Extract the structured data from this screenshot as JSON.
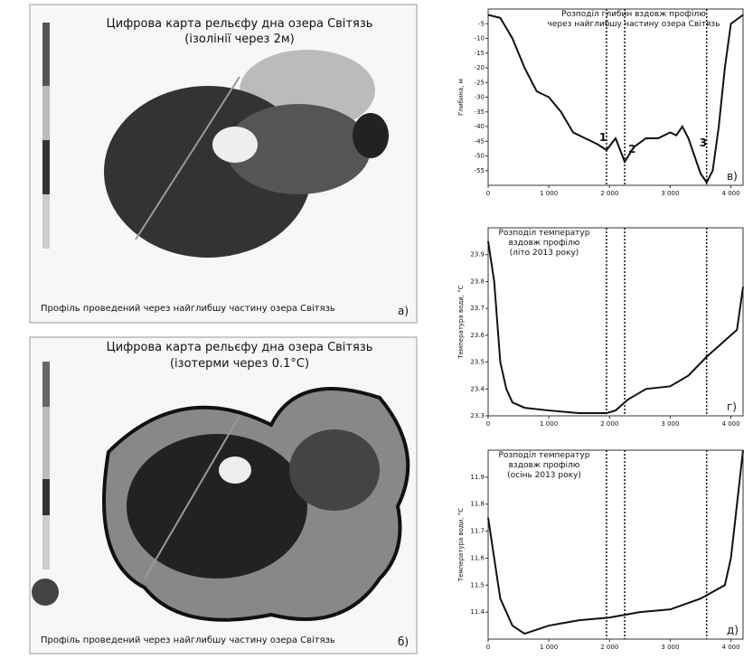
{
  "maps": [
    {
      "title": "Цифрова карта рельєфу дна озера Світязь",
      "subtitle": "(ізолінії через 2м)",
      "caption": "Профіль проведений через найглибшу частину озера Світязь",
      "panel_label": "а)"
    },
    {
      "title": "Цифрова карта рельєфу дна озера Світязь",
      "subtitle": "(ізотерми через 0.1°С)",
      "caption": "Профіль проведений через найглибшу частину озера Світязь",
      "panel_label": "б)"
    }
  ],
  "chart_data": [
    {
      "type": "line",
      "title_lines": [
        "Розподіл глибин вздовж профілю",
        "через найглибшу частину озера Світязь"
      ],
      "ylabel": "Глибина, м",
      "panel_label": "в)",
      "x": [
        0,
        200,
        400,
        600,
        800,
        1000,
        1200,
        1400,
        1600,
        1800,
        1950,
        2100,
        2250,
        2400,
        2600,
        2800,
        3000,
        3100,
        3200,
        3300,
        3400,
        3500,
        3600,
        3700,
        3800,
        3900,
        4000,
        4200
      ],
      "series": [
        {
          "color": "#111111",
          "values": [
            -2,
            -3,
            -10,
            -20,
            -28,
            -30,
            -35,
            -42,
            -44,
            -46,
            -48,
            -44,
            -52,
            -47,
            -44,
            -44,
            -42,
            -43,
            -40,
            -44,
            -50,
            -56,
            -59,
            -55,
            -40,
            -20,
            -5,
            -2
          ]
        }
      ],
      "xlim": [
        0,
        4200
      ],
      "xticks": [
        0,
        {
          "value": 1000,
          "label": "1 000"
        },
        {
          "value": 2000,
          "label": "2 000"
        },
        {
          "value": 3000,
          "label": "3 000"
        },
        {
          "value": 4000,
          "label": "4 000"
        }
      ],
      "ylim": [
        -60,
        0
      ],
      "yticks": [
        -55,
        -50,
        -45,
        -40,
        -35,
        -30,
        -25,
        -20,
        -15,
        -10,
        -5
      ],
      "markers": {
        "x": [
          1950,
          2250,
          3600
        ],
        "labels": [
          "1",
          "2",
          "3"
        ]
      }
    },
    {
      "type": "line",
      "title_lines": [
        "Розподіл температур",
        "вздовж профілю",
        "(літо 2013 року)"
      ],
      "ylabel": "Температура води, °С",
      "panel_label": "г)",
      "x": [
        0,
        100,
        200,
        300,
        400,
        600,
        1000,
        1500,
        1950,
        2100,
        2300,
        2600,
        3000,
        3300,
        3600,
        3900,
        4100,
        4200
      ],
      "series": [
        {
          "color": "#111111",
          "values": [
            23.95,
            23.8,
            23.5,
            23.4,
            23.35,
            23.33,
            23.32,
            23.31,
            23.31,
            23.32,
            23.36,
            23.4,
            23.41,
            23.45,
            23.52,
            23.58,
            23.62,
            23.78
          ]
        }
      ],
      "xlim": [
        0,
        4200
      ],
      "xticks": [
        0,
        {
          "value": 1000,
          "label": "1 000"
        },
        {
          "value": 2000,
          "label": "2 000"
        },
        {
          "value": 3000,
          "label": "3 000"
        },
        {
          "value": 4000,
          "label": "4 000"
        }
      ],
      "ylim": [
        23.3,
        24.0
      ],
      "yticks": [
        23.3,
        23.4,
        23.5,
        23.6,
        23.7,
        23.8,
        23.9
      ],
      "markers": {
        "x": [
          1950,
          2250,
          3600
        ]
      }
    },
    {
      "type": "line",
      "title_lines": [
        "Розподіл температур",
        "вздовж профілю",
        "(осінь 2013 року)"
      ],
      "ylabel": "Температура води, °С",
      "panel_label": "д)",
      "x": [
        0,
        100,
        200,
        400,
        600,
        1000,
        1500,
        2000,
        2500,
        3000,
        3500,
        3900,
        4000,
        4100,
        4200
      ],
      "series": [
        {
          "color": "#111111",
          "values": [
            11.75,
            11.6,
            11.45,
            11.35,
            11.32,
            11.35,
            11.37,
            11.38,
            11.4,
            11.41,
            11.45,
            11.5,
            11.6,
            11.8,
            12.0
          ]
        }
      ],
      "xlim": [
        0,
        4200
      ],
      "xticks": [
        0,
        {
          "value": 1000,
          "label": "1 000"
        },
        {
          "value": 2000,
          "label": "2 000"
        },
        {
          "value": 3000,
          "label": "3 000"
        },
        {
          "value": 4000,
          "label": "4 000"
        }
      ],
      "ylim": [
        11.3,
        12.0
      ],
      "yticks": [
        11.4,
        11.5,
        11.6,
        11.7,
        11.8,
        11.9
      ],
      "markers": {
        "x": [
          1950,
          2250,
          3600
        ]
      }
    }
  ]
}
